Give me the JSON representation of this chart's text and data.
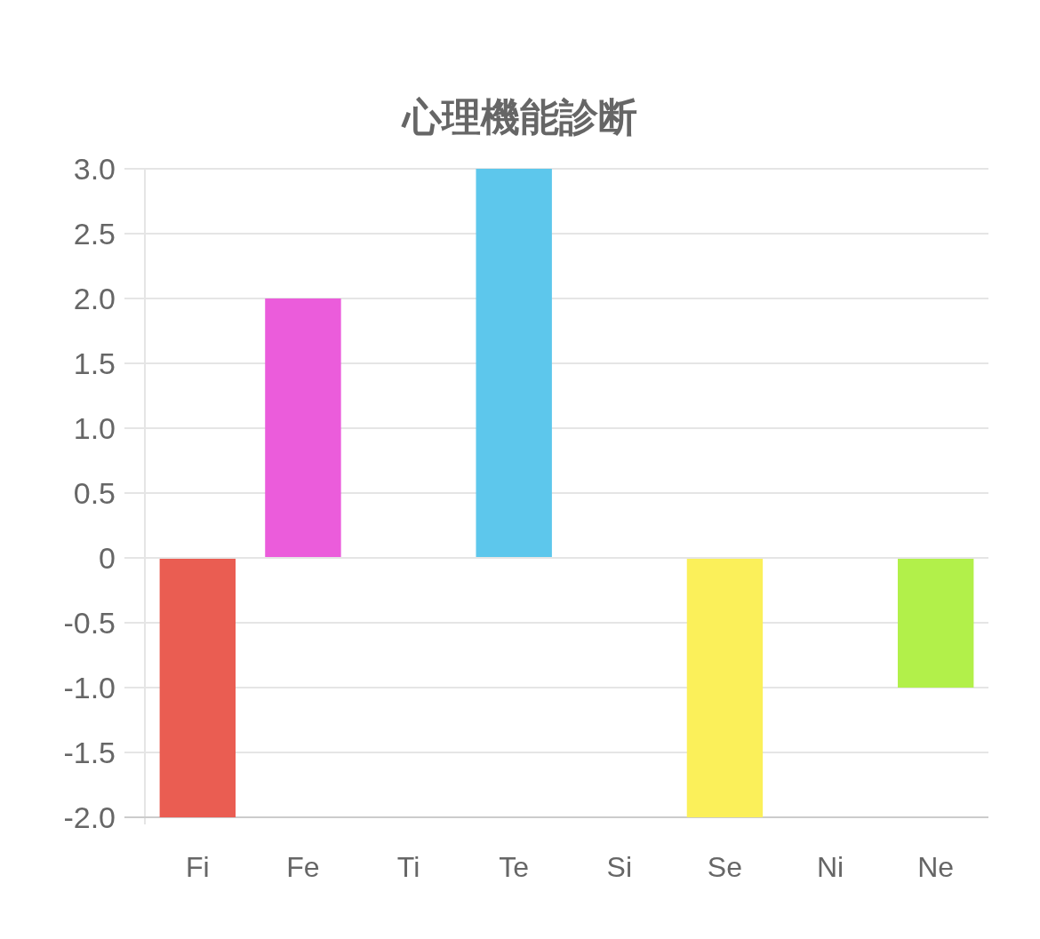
{
  "chart_data": {
    "type": "bar",
    "title": "心理機能診断",
    "categories": [
      "Fi",
      "Fe",
      "Ti",
      "Te",
      "Si",
      "Se",
      "Ni",
      "Ne"
    ],
    "values": [
      -2,
      2,
      0,
      3,
      0,
      -2,
      0,
      -1
    ],
    "colors": [
      "#ea5d52",
      "#eb5cdb",
      null,
      "#5dc7ec",
      null,
      "#fbf05a",
      null,
      "#b2f04a"
    ],
    "ylim": [
      -2,
      3
    ],
    "yticks": [
      {
        "value": 3,
        "label": "3.0"
      },
      2.5,
      {
        "value": 2,
        "label": "2.0"
      },
      1.5,
      {
        "value": 1,
        "label": "1.0"
      },
      0.5,
      0,
      -0.5,
      {
        "value": -1,
        "label": "-1.0"
      },
      -1.5,
      {
        "value": -2,
        "label": "-2.0"
      }
    ],
    "grid": "y"
  }
}
